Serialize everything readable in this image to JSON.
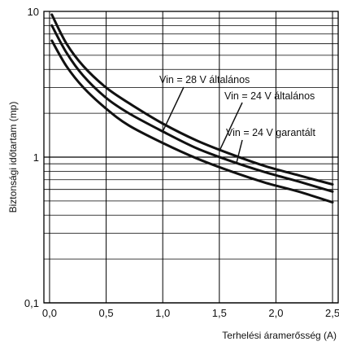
{
  "chart_data": {
    "type": "line",
    "title": "",
    "xlabel": "Terhelési áramerősség (A)",
    "ylabel": "Biztonsági időtartam (mp)",
    "xlim": [
      -0.05,
      2.55
    ],
    "ylim": [
      0.1,
      10
    ],
    "y_scale": "log",
    "grid": true,
    "x_ticks": [
      0.0,
      0.5,
      1.0,
      1.5,
      2.0,
      2.5
    ],
    "x_tick_labels": [
      "0,0",
      "0,5",
      "1,0",
      "1,5",
      "2,0",
      "2,5"
    ],
    "y_tick_values": [
      0.1,
      1,
      10
    ],
    "y_tick_labels": [
      "0,1",
      "1",
      "10"
    ],
    "series": [
      {
        "name": "Vin = 28 V  általános",
        "x": [
          0.02,
          0.15,
          0.3,
          0.5,
          0.7,
          1.0,
          1.3,
          1.6,
          1.9,
          2.2,
          2.5
        ],
        "y": [
          9.5,
          6.0,
          4.2,
          3.0,
          2.35,
          1.7,
          1.3,
          1.05,
          0.87,
          0.75,
          0.65
        ]
      },
      {
        "name": "Vin = 24 V  általános",
        "x": [
          0.02,
          0.15,
          0.3,
          0.5,
          0.7,
          1.0,
          1.3,
          1.6,
          1.9,
          2.2,
          2.5
        ],
        "y": [
          8.0,
          5.2,
          3.6,
          2.55,
          2.0,
          1.5,
          1.15,
          0.94,
          0.79,
          0.68,
          0.58
        ]
      },
      {
        "name": "Vin = 24 V  garantált",
        "x": [
          0.02,
          0.15,
          0.3,
          0.5,
          0.7,
          1.0,
          1.3,
          1.6,
          1.9,
          2.2,
          2.5
        ],
        "y": [
          6.3,
          4.2,
          3.0,
          2.15,
          1.65,
          1.25,
          0.98,
          0.8,
          0.67,
          0.58,
          0.49
        ]
      }
    ],
    "annotations": [
      {
        "text": "Vin = 28 V  általános",
        "x": 1.0,
        "y": 1.5
      },
      {
        "text": "Vin = 24 V  általános",
        "x": 1.5,
        "y": 1.1
      },
      {
        "text": "Vin = 24 V  garantált",
        "x": 1.65,
        "y": 0.9
      }
    ]
  }
}
